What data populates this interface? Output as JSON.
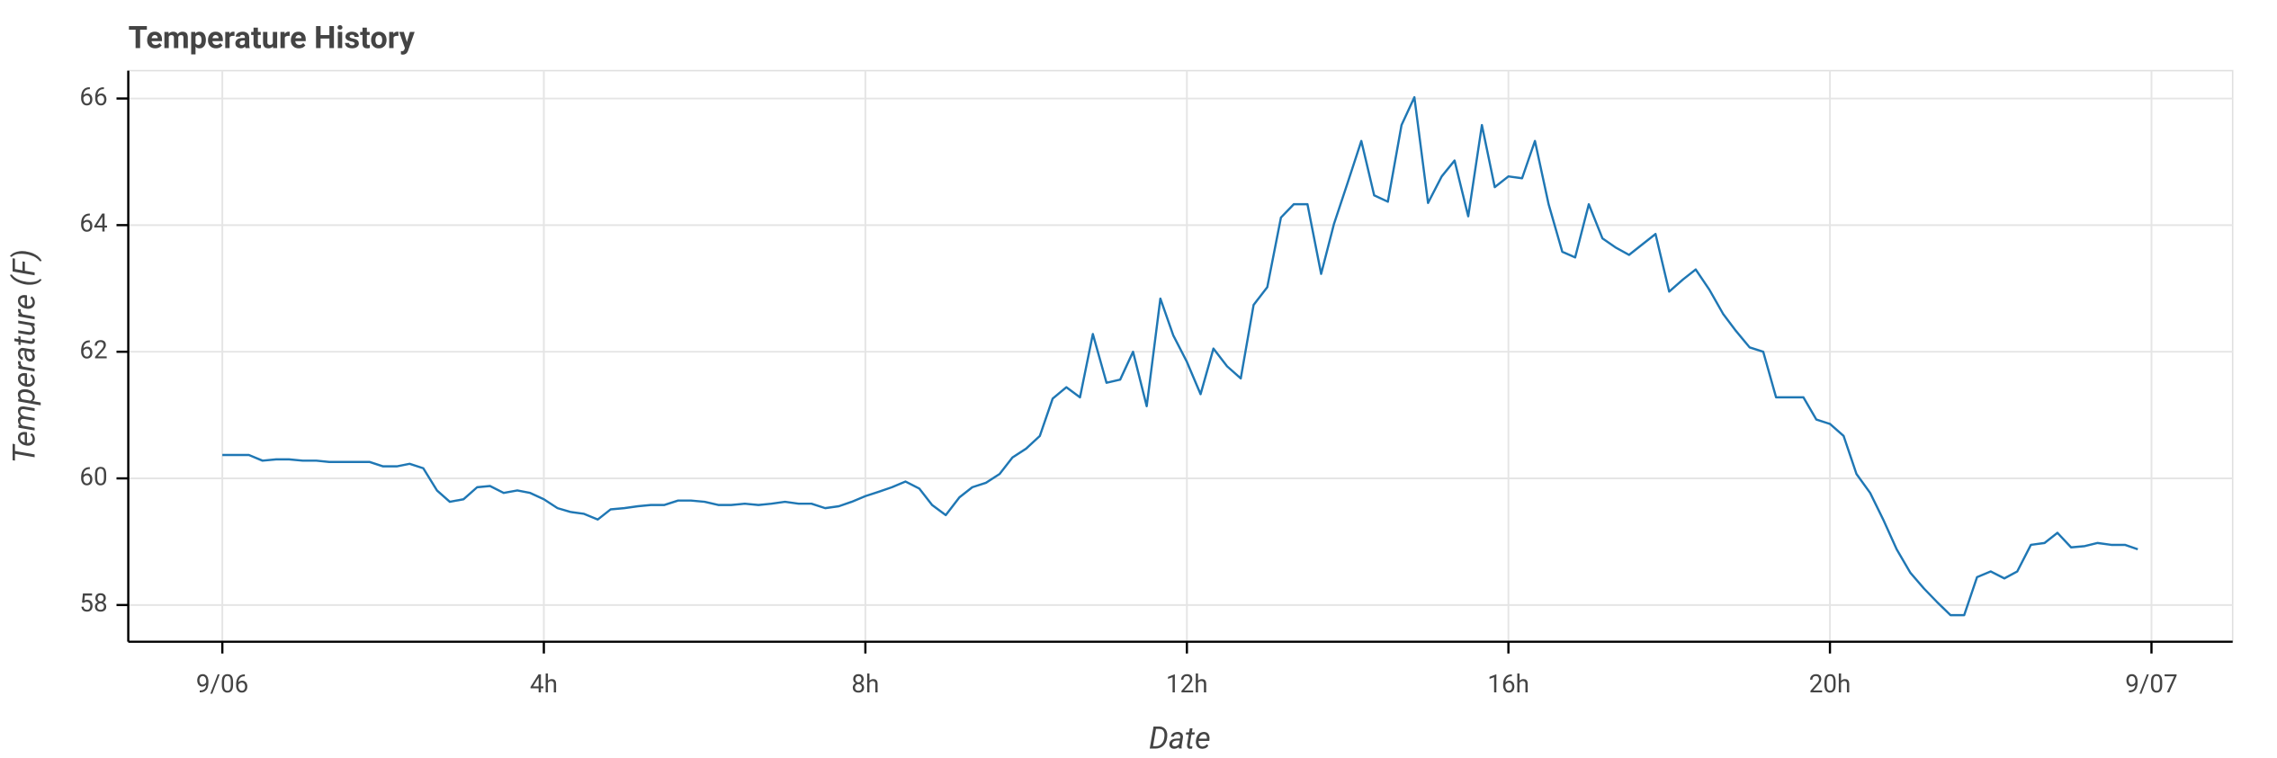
{
  "chart_data": {
    "type": "line",
    "title": "Temperature History",
    "x_label": "Date",
    "y_label": "Temperature (F)",
    "color": "#1f77b4",
    "grid": true,
    "xlim": [
      -1.17,
      25.01
    ],
    "ylim": [
      57.42,
      66.44
    ],
    "xticks": [
      {
        "value": 0,
        "label": "9/06"
      },
      {
        "value": 4,
        "label": "4h"
      },
      {
        "value": 8,
        "label": "8h"
      },
      {
        "value": 12,
        "label": "12h"
      },
      {
        "value": 16,
        "label": "16h"
      },
      {
        "value": 20,
        "label": "20h"
      },
      {
        "value": 24,
        "label": "9/07"
      }
    ],
    "yticks": [
      58,
      60,
      62,
      64,
      66
    ],
    "x": [
      0,
      0.17,
      0.33,
      0.5,
      0.67,
      0.83,
      1,
      1.17,
      1.33,
      1.5,
      1.67,
      1.83,
      2,
      2.17,
      2.33,
      2.5,
      2.67,
      2.83,
      3,
      3.17,
      3.33,
      3.5,
      3.67,
      3.83,
      4,
      4.17,
      4.33,
      4.5,
      4.67,
      4.83,
      5,
      5.17,
      5.33,
      5.5,
      5.67,
      5.83,
      6,
      6.17,
      6.33,
      6.5,
      6.67,
      6.83,
      7,
      7.17,
      7.33,
      7.5,
      7.67,
      7.83,
      8,
      8.17,
      8.33,
      8.5,
      8.67,
      8.83,
      9,
      9.17,
      9.33,
      9.5,
      9.67,
      9.83,
      10,
      10.17,
      10.33,
      10.5,
      10.67,
      10.83,
      11,
      11.17,
      11.33,
      11.5,
      11.67,
      11.83,
      12,
      12.17,
      12.33,
      12.5,
      12.67,
      12.83,
      13,
      13.17,
      13.33,
      13.5,
      13.67,
      13.83,
      14,
      14.17,
      14.33,
      14.5,
      14.67,
      14.83,
      15,
      15.17,
      15.33,
      15.5,
      15.67,
      15.83,
      16,
      16.17,
      16.33,
      16.5,
      16.67,
      16.83,
      17,
      17.17,
      17.33,
      17.5,
      17.67,
      17.83,
      18,
      18.17,
      18.33,
      18.5,
      18.67,
      18.83,
      19,
      19.17,
      19.33,
      19.5,
      19.67,
      19.83,
      20,
      20.17,
      20.33,
      20.5,
      20.67,
      20.83,
      21,
      21.17,
      21.33,
      21.5,
      21.67,
      21.83,
      22,
      22.17,
      22.33,
      22.5,
      22.67,
      22.83,
      23,
      23.17,
      23.33,
      23.5,
      23.67,
      23.83
    ],
    "values": [
      60.37,
      60.37,
      60.37,
      60.28,
      60.3,
      60.3,
      60.28,
      60.28,
      60.26,
      60.26,
      60.26,
      60.26,
      60.19,
      60.19,
      60.23,
      60.16,
      59.81,
      59.63,
      59.67,
      59.86,
      59.88,
      59.77,
      59.81,
      59.77,
      59.67,
      59.53,
      59.47,
      59.44,
      59.35,
      59.51,
      59.53,
      59.56,
      59.58,
      59.58,
      59.65,
      59.65,
      59.63,
      59.58,
      59.58,
      59.6,
      59.58,
      59.6,
      59.63,
      59.6,
      59.6,
      59.53,
      59.56,
      59.63,
      59.72,
      59.79,
      59.86,
      59.95,
      59.84,
      59.58,
      59.42,
      59.7,
      59.86,
      59.93,
      60.07,
      60.33,
      60.47,
      60.67,
      61.26,
      61.44,
      61.28,
      62.28,
      61.51,
      61.56,
      62.0,
      61.14,
      62.84,
      62.26,
      61.84,
      61.33,
      62.05,
      61.77,
      61.58,
      62.74,
      63.02,
      64.12,
      64.33,
      64.33,
      63.23,
      64.02,
      64.67,
      65.33,
      64.47,
      64.37,
      65.58,
      66.02,
      64.35,
      64.77,
      65.02,
      64.14,
      65.58,
      64.6,
      64.77,
      64.74,
      65.33,
      64.33,
      63.58,
      63.49,
      64.33,
      63.79,
      63.65,
      63.53,
      63.7,
      63.86,
      62.95,
      63.14,
      63.3,
      62.98,
      62.6,
      62.33,
      62.07,
      62.0,
      61.28,
      61.28,
      61.28,
      60.93,
      60.86,
      60.67,
      60.07,
      59.77,
      59.33,
      58.88,
      58.51,
      58.26,
      58.05,
      57.84,
      57.84,
      58.44,
      58.53,
      58.42,
      58.53,
      58.95,
      58.98,
      59.14,
      58.91,
      58.93,
      58.98,
      58.95,
      58.95,
      58.88
    ]
  }
}
